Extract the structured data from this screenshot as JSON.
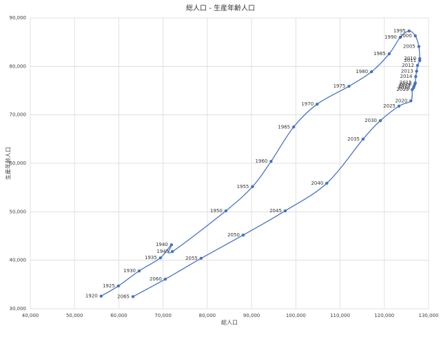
{
  "chart_data": {
    "type": "scatter",
    "title": "総人口 - 生産年齢人口",
    "x_label": "総人口",
    "y_label": "生産年齢人口",
    "grid": true,
    "xlim": [
      40000,
      130000
    ],
    "xticks": [
      {
        "value": 40000,
        "label": "40,000"
      },
      {
        "value": 50000,
        "label": "50,000"
      },
      {
        "value": 60000,
        "label": "60,000"
      },
      {
        "value": 70000,
        "label": "70,000"
      },
      {
        "value": 80000,
        "label": "80,000"
      },
      {
        "value": 90000,
        "label": "90,000"
      },
      {
        "value": 100000,
        "label": "100,000"
      },
      {
        "value": 110000,
        "label": "110,000"
      },
      {
        "value": 120000,
        "label": "120,000"
      },
      {
        "value": 130000,
        "label": "130,000"
      }
    ],
    "ylim": [
      30000,
      90000
    ],
    "yticks": [
      {
        "value": 30000,
        "label": "30,000"
      },
      {
        "value": 40000,
        "label": "40,000"
      },
      {
        "value": 50000,
        "label": "50,000"
      },
      {
        "value": 60000,
        "label": "60,000"
      },
      {
        "value": 70000,
        "label": "70,000"
      },
      {
        "value": 80000,
        "label": "80,000"
      },
      {
        "value": 90000,
        "label": "90,000"
      }
    ],
    "series": [
      {
        "color": "#4472c4",
        "labels": [
          "1920",
          "1925",
          "1930",
          "1935",
          "1940",
          "1945",
          "1950",
          "1955",
          "1960",
          "1965",
          "1970",
          "1975",
          "1980",
          "1985",
          "1990",
          "1995",
          "2000",
          "2005",
          "2010",
          "2011",
          "2012",
          "2013",
          "2014",
          "2015",
          "2016",
          "2017",
          "2018",
          "2019",
          "2020",
          "2025",
          "2030",
          "2035",
          "2040",
          "2045",
          "2050",
          "2055",
          "2060",
          "2065"
        ],
        "x": [
          56000,
          59900,
          64600,
          69400,
          71900,
          72100,
          84200,
          90200,
          94400,
          99500,
          104800,
          112000,
          117100,
          121100,
          123600,
          125600,
          127000,
          127800,
          128000,
          128000,
          127500,
          127300,
          127100,
          127000,
          126900,
          126700,
          126600,
          126300,
          126000,
          123300,
          119100,
          115200,
          107000,
          97600,
          88100,
          78600,
          70500,
          63200
        ],
        "values": [
          32600,
          34700,
          37800,
          40500,
          43200,
          41800,
          50200,
          55200,
          60400,
          67500,
          72200,
          75900,
          78900,
          82600,
          86000,
          87300,
          86300,
          84100,
          81600,
          81200,
          80200,
          79000,
          77900,
          76600,
          76300,
          75900,
          75600,
          75200,
          72900,
          71800,
          68800,
          65000,
          55900,
          50200,
          45200,
          40400,
          36100,
          32500
        ]
      }
    ]
  }
}
